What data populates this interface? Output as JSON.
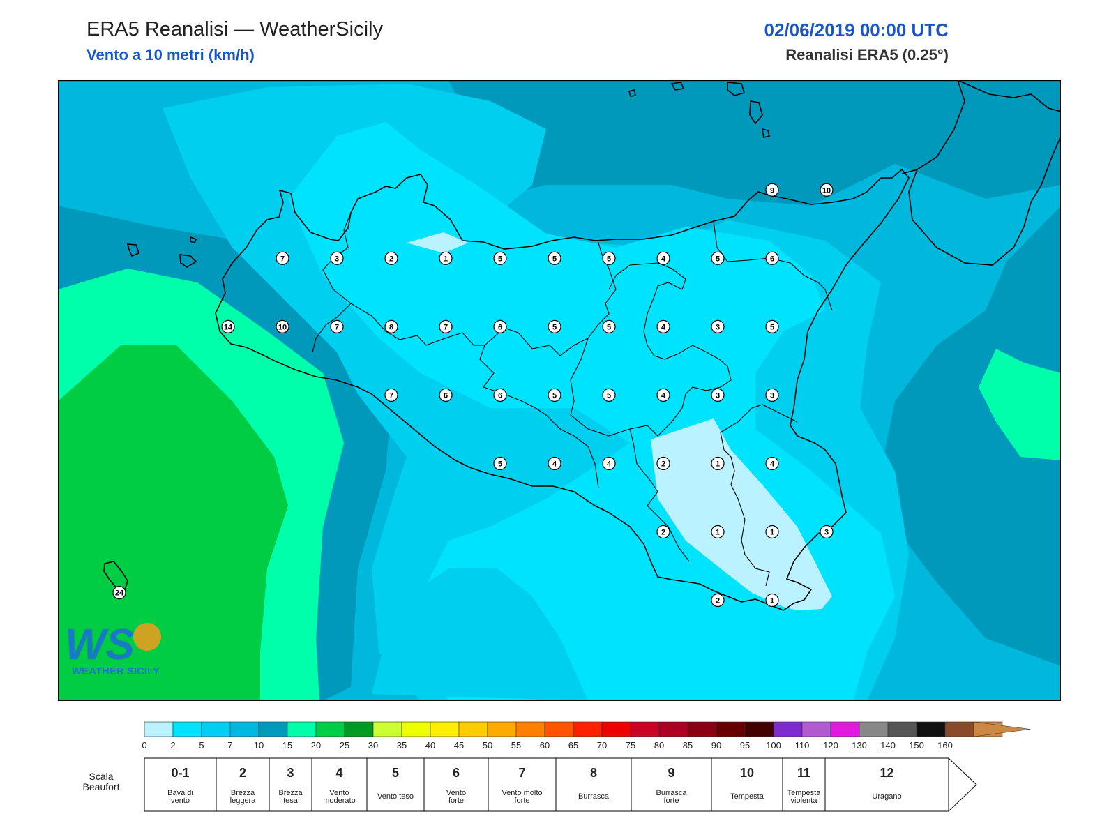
{
  "header": {
    "title": "ERA5 Reanalisi — WeatherSicily",
    "subtitle": "Vento a 10 metri (km/h)",
    "datetime": "02/06/2019 00:00 UTC",
    "resolution": "Reanalisi ERA5 (0.25°)"
  },
  "logo": {
    "text": "WEATHER SICILY",
    "mark": "WS"
  },
  "colors": {
    "c0": "#baf2ff",
    "c2": "#00e3ff",
    "c5": "#00cfef",
    "c7": "#00b8dc",
    "c10": "#0099bb",
    "c15": "#00ffaa",
    "c20": "#00cc44",
    "coast": "#000000"
  },
  "stations": [
    {
      "v": "7",
      "lat": 38.2,
      "lon": 12.5
    },
    {
      "v": "3",
      "lat": 38.2,
      "lon": 13.0
    },
    {
      "v": "2",
      "lat": 38.2,
      "lon": 13.5
    },
    {
      "v": "1",
      "lat": 38.2,
      "lon": 14.0
    },
    {
      "v": "5",
      "lat": 38.2,
      "lon": 14.5
    },
    {
      "v": "5",
      "lat": 38.2,
      "lon": 15.0
    },
    {
      "v": "5",
      "lat": 38.2,
      "lon": 15.5
    },
    {
      "v": "4",
      "lat": 38.2,
      "lon": 16.0
    },
    {
      "v": "5",
      "lat": 38.2,
      "lon": 16.5
    },
    {
      "v": "6",
      "lat": 38.2,
      "lon": 17.0
    },
    {
      "v": "9",
      "lat": 38.83,
      "lon": 17.0
    },
    {
      "v": "10",
      "lat": 38.83,
      "lon": 17.5
    },
    {
      "v": "14",
      "lat": 37.57,
      "lon": 12.0
    },
    {
      "v": "10",
      "lat": 37.57,
      "lon": 12.5
    },
    {
      "v": "7",
      "lat": 37.57,
      "lon": 13.0
    },
    {
      "v": "8",
      "lat": 37.57,
      "lon": 13.5
    },
    {
      "v": "7",
      "lat": 37.57,
      "lon": 14.0
    },
    {
      "v": "6",
      "lat": 37.57,
      "lon": 14.5
    },
    {
      "v": "5",
      "lat": 37.57,
      "lon": 15.0
    },
    {
      "v": "5",
      "lat": 37.57,
      "lon": 15.5
    },
    {
      "v": "4",
      "lat": 37.57,
      "lon": 16.0
    },
    {
      "v": "3",
      "lat": 37.57,
      "lon": 16.5
    },
    {
      "v": "5",
      "lat": 37.57,
      "lon": 17.0
    },
    {
      "v": "7",
      "lat": 36.94,
      "lon": 13.5
    },
    {
      "v": "6",
      "lat": 36.94,
      "lon": 14.0
    },
    {
      "v": "6",
      "lat": 36.94,
      "lon": 14.5
    },
    {
      "v": "5",
      "lat": 36.94,
      "lon": 15.0
    },
    {
      "v": "5",
      "lat": 36.94,
      "lon": 15.5
    },
    {
      "v": "4",
      "lat": 36.94,
      "lon": 16.0
    },
    {
      "v": "3",
      "lat": 36.94,
      "lon": 16.5
    },
    {
      "v": "3",
      "lat": 36.94,
      "lon": 17.0
    },
    {
      "v": "5",
      "lat": 36.31,
      "lon": 14.5
    },
    {
      "v": "4",
      "lat": 36.31,
      "lon": 15.0
    },
    {
      "v": "4",
      "lat": 36.31,
      "lon": 15.5
    },
    {
      "v": "2",
      "lat": 36.31,
      "lon": 16.0
    },
    {
      "v": "1",
      "lat": 36.31,
      "lon": 16.5
    },
    {
      "v": "4",
      "lat": 36.31,
      "lon": 17.0
    },
    {
      "v": "2",
      "lat": 35.68,
      "lon": 16.0
    },
    {
      "v": "1",
      "lat": 35.68,
      "lon": 16.5
    },
    {
      "v": "1",
      "lat": 35.68,
      "lon": 17.0
    },
    {
      "v": "3",
      "lat": 35.68,
      "lon": 17.5
    },
    {
      "v": "2",
      "lat": 35.05,
      "lon": 16.5
    },
    {
      "v": "1",
      "lat": 35.05,
      "lon": 17.0
    },
    {
      "v": "24",
      "lat": 35.12,
      "lon": 11.0
    }
  ],
  "colorbar": {
    "ticks": [
      "0",
      "2",
      "5",
      "7",
      "10",
      "15",
      "20",
      "25",
      "30",
      "35",
      "40",
      "45",
      "50",
      "55",
      "60",
      "65",
      "70",
      "75",
      "80",
      "85",
      "90",
      "95",
      "100",
      "110",
      "120",
      "130",
      "140",
      "150",
      "160"
    ],
    "colors": [
      "#baf2ff",
      "#00e3ff",
      "#00cfef",
      "#00b8dc",
      "#0099bb",
      "#00ffaa",
      "#00cc44",
      "#009922",
      "#ccff33",
      "#eeff00",
      "#ffee00",
      "#ffcc00",
      "#ffaa00",
      "#ff7f00",
      "#ff5500",
      "#ff2000",
      "#ee0000",
      "#cc0022",
      "#aa0022",
      "#880011",
      "#660000",
      "#440000",
      "#7f2acc",
      "#b45ad0",
      "#e01cdc",
      "#888888",
      "#555555",
      "#111111",
      "#8a4a2a",
      "#cc8844"
    ]
  },
  "beaufort": {
    "label": "Scala Beaufort",
    "cells": [
      {
        "n": "0-1",
        "d": "Bava di vento"
      },
      {
        "n": "2",
        "d": "Brezza leggera"
      },
      {
        "n": "3",
        "d": "Brezza tesa"
      },
      {
        "n": "4",
        "d": "Vento moderato"
      },
      {
        "n": "5",
        "d": "Vento teso"
      },
      {
        "n": "6",
        "d": "Vento forte"
      },
      {
        "n": "7",
        "d": "Vento molto forte"
      },
      {
        "n": "8",
        "d": "Burrasca"
      },
      {
        "n": "9",
        "d": "Burrasca forte"
      },
      {
        "n": "10",
        "d": "Tempesta"
      },
      {
        "n": "11",
        "d": "Tempesta violenta"
      },
      {
        "n": "12",
        "d": "Uragano"
      }
    ]
  }
}
